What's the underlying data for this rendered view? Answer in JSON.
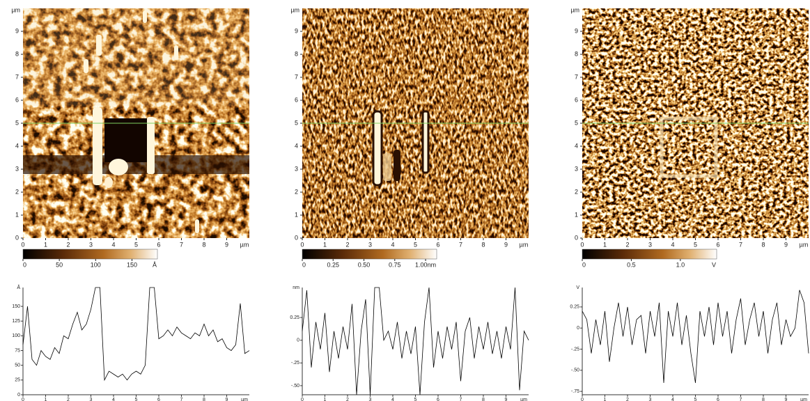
{
  "chart_data": [
    {
      "type": "image",
      "xlabel": "µm",
      "ylabel": "µm",
      "xlim": [
        0,
        10
      ],
      "ylim": [
        0,
        10
      ],
      "xticks": [
        0,
        1,
        2,
        3,
        4,
        5,
        6,
        7,
        8,
        9
      ],
      "yticks": [
        0,
        1,
        2,
        3,
        4,
        5,
        6,
        7,
        8,
        9
      ],
      "profile_y": 5,
      "profile_color": "#7fd060",
      "colorbar": {
        "lim": [
          0,
          185
        ],
        "ticks": [
          0,
          50,
          100,
          150
        ],
        "label": "Å"
      }
    },
    {
      "type": "image",
      "xlabel": "µm",
      "ylabel": "µm",
      "xlim": [
        0,
        10
      ],
      "ylim": [
        0,
        10
      ],
      "xticks": [
        0,
        1,
        2,
        3,
        4,
        5,
        6,
        7,
        8,
        9
      ],
      "yticks": [
        0,
        1,
        2,
        3,
        4,
        5,
        6,
        7,
        8,
        9
      ],
      "profile_y": 5,
      "profile_color": "#7fd060",
      "colorbar": {
        "lim": [
          0,
          1.09
        ],
        "ticks": [
          0,
          0.25,
          {
            "value": 0.5,
            "label": "0.50"
          },
          0.75,
          {
            "value": 1,
            "label": "1.00nm"
          }
        ]
      }
    },
    {
      "type": "image",
      "xlabel": "µm",
      "ylabel": "µm",
      "xlim": [
        0,
        10
      ],
      "ylim": [
        0,
        10
      ],
      "xticks": [
        0,
        1,
        2,
        3,
        4,
        5,
        6,
        7,
        8,
        9
      ],
      "yticks": [
        0,
        1,
        2,
        3,
        4,
        5,
        6,
        7,
        8,
        9
      ],
      "profile_y": 5,
      "profile_color": "#7fd060",
      "colorbar": {
        "lim": [
          0,
          1.37
        ],
        "ticks": [
          0,
          0.5,
          {
            "value": 1,
            "label": "1.0"
          }
        ],
        "label": "V"
      }
    },
    {
      "type": "line",
      "xlabel": "µm",
      "ylabel": "Å",
      "xlim": [
        0,
        10
      ],
      "ylim": [
        0,
        182
      ],
      "color": "#000000",
      "xticks": [
        0,
        1,
        2,
        3,
        4,
        5,
        6,
        7,
        8,
        9
      ],
      "yticks": [
        0,
        25,
        50,
        75,
        100,
        125,
        150
      ],
      "x": [
        0,
        0.2,
        0.4,
        0.6,
        0.8,
        1,
        1.2,
        1.4,
        1.6,
        1.8,
        2,
        2.2,
        2.4,
        2.6,
        2.8,
        3,
        3.2,
        3.4,
        3.6,
        3.8,
        4,
        4.2,
        4.4,
        4.6,
        4.8,
        5,
        5.2,
        5.4,
        5.6,
        5.8,
        6,
        6.2,
        6.4,
        6.6,
        6.8,
        7,
        7.2,
        7.4,
        7.6,
        7.8,
        8,
        8.2,
        8.4,
        8.6,
        8.8,
        9,
        9.2,
        9.4,
        9.6,
        9.8,
        10
      ],
      "values": [
        85,
        150,
        60,
        50,
        75,
        65,
        60,
        80,
        70,
        100,
        95,
        120,
        140,
        110,
        120,
        145,
        182,
        182,
        25,
        40,
        35,
        30,
        35,
        25,
        35,
        40,
        35,
        50,
        182,
        182,
        95,
        100,
        110,
        100,
        115,
        105,
        100,
        95,
        105,
        100,
        120,
        100,
        110,
        90,
        95,
        80,
        75,
        85,
        155,
        70,
        75
      ]
    },
    {
      "type": "line",
      "xlabel": "µm",
      "ylabel": "nm",
      "xlim": [
        0,
        10
      ],
      "ylim": [
        -0.6,
        0.58
      ],
      "color": "#000000",
      "xticks": [
        0,
        1,
        2,
        3,
        4,
        5,
        6,
        7,
        8,
        9
      ],
      "yticks": [
        0.25,
        0,
        {
          "value": -0.25,
          "label": "-.25"
        },
        {
          "value": -0.5,
          "label": "-.50"
        }
      ],
      "x": [
        0,
        0.2,
        0.4,
        0.6,
        0.8,
        1,
        1.2,
        1.4,
        1.6,
        1.8,
        2,
        2.2,
        2.4,
        2.6,
        2.8,
        3,
        3.2,
        3.4,
        3.6,
        3.8,
        4,
        4.2,
        4.4,
        4.6,
        4.8,
        5,
        5.2,
        5.4,
        5.6,
        5.8,
        6,
        6.2,
        6.4,
        6.6,
        6.8,
        7,
        7.2,
        7.4,
        7.6,
        7.8,
        8,
        8.2,
        8.4,
        8.6,
        8.8,
        9,
        9.2,
        9.4,
        9.6,
        9.8,
        10
      ],
      "values": [
        0.1,
        0.55,
        -0.3,
        0.2,
        -0.1,
        0.3,
        -0.35,
        0.1,
        -0.2,
        0.15,
        -0.1,
        0.4,
        -0.6,
        0.1,
        0.45,
        -0.6,
        0.58,
        0.58,
        0,
        0.1,
        -0.1,
        0.2,
        -0.2,
        0.1,
        -0.15,
        0.15,
        -0.6,
        0.2,
        0.58,
        -0.3,
        0.1,
        -0.2,
        0.15,
        -0.1,
        0.2,
        -0.45,
        0.1,
        0.25,
        -0.2,
        0.15,
        -0.1,
        0.2,
        -0.15,
        0.1,
        -0.2,
        0.15,
        -0.1,
        0.58,
        -0.55,
        0.1,
        0
      ]
    },
    {
      "type": "line",
      "xlabel": "µm",
      "ylabel": "V",
      "xlim": [
        0,
        10
      ],
      "ylim": [
        -0.79,
        0.48
      ],
      "color": "#000000",
      "xticks": [
        0,
        1,
        2,
        3,
        4,
        5,
        6,
        7,
        8,
        9
      ],
      "yticks": [
        0.25,
        0,
        {
          "value": -0.25,
          "label": "-.25"
        },
        {
          "value": -0.5,
          "label": "-.50"
        },
        {
          "value": -0.75,
          "label": "-.75"
        }
      ],
      "x": [
        0,
        0.2,
        0.4,
        0.6,
        0.8,
        1,
        1.2,
        1.4,
        1.6,
        1.8,
        2,
        2.2,
        2.4,
        2.6,
        2.8,
        3,
        3.2,
        3.4,
        3.6,
        3.8,
        4,
        4.2,
        4.4,
        4.6,
        4.8,
        5,
        5.2,
        5.4,
        5.6,
        5.8,
        6,
        6.2,
        6.4,
        6.6,
        6.8,
        7,
        7.2,
        7.4,
        7.6,
        7.8,
        8,
        8.2,
        8.4,
        8.6,
        8.8,
        9,
        9.2,
        9.4,
        9.6,
        9.8,
        10
      ],
      "values": [
        0.2,
        0.1,
        -0.3,
        0.1,
        -0.2,
        0.2,
        -0.4,
        0,
        0.3,
        -0.1,
        0.25,
        -0.2,
        0.1,
        0.15,
        -0.3,
        0.2,
        -0.1,
        0.3,
        -0.65,
        0.2,
        -0.1,
        0.3,
        -0.2,
        0.15,
        -0.3,
        -0.65,
        0.2,
        -0.1,
        0.25,
        -0.2,
        0.3,
        -0.1,
        0.2,
        -0.3,
        0.1,
        0.35,
        -0.2,
        0.1,
        0.3,
        -0.1,
        0.2,
        -0.3,
        0.1,
        0.3,
        -0.2,
        0.1,
        -0.1,
        0,
        0.45,
        0.3,
        -0.3
      ]
    }
  ]
}
